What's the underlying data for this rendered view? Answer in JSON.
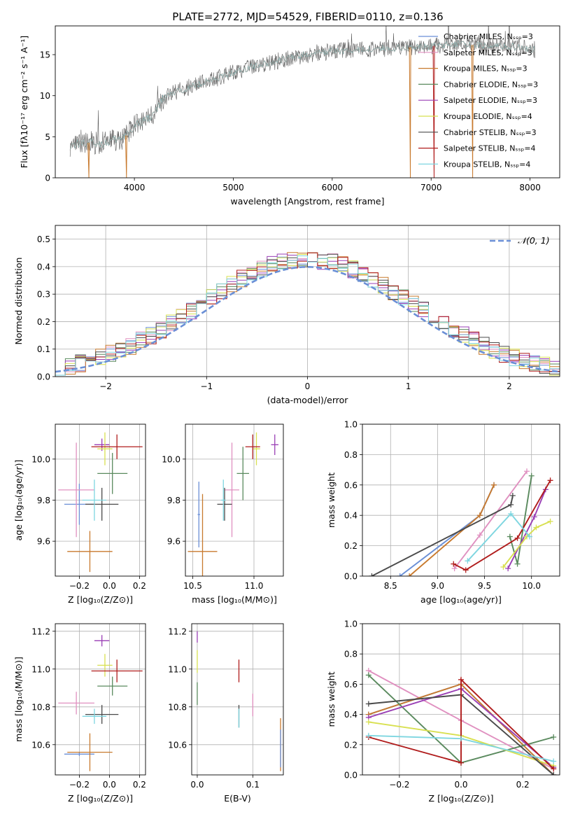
{
  "figure": {
    "title": "PLATE=2772, MJD=54529, FIBERID=0110, z=0.136"
  },
  "chart_data": [
    {
      "id": "spectrum",
      "type": "line",
      "xlabel": "wavelength [Angstrom, rest frame]",
      "ylabel": "Flux [fλ10⁻¹⁷ erg cm⁻² s⁻¹ A⁻¹]",
      "xlim": [
        3200,
        8300
      ],
      "ylim": [
        0,
        18.5
      ],
      "xticks": [
        4000,
        5000,
        6000,
        7000,
        8000
      ],
      "yticks": [
        0,
        5,
        10,
        15
      ],
      "grid": false,
      "legend_position": "top-right",
      "data_continuum": {
        "x": [
          3350,
          3500,
          3700,
          3900,
          4000,
          4100,
          4200,
          4300,
          4500,
          4700,
          5000,
          5200,
          5400,
          5600,
          5800,
          6000,
          6200,
          6400,
          6600,
          6800,
          7000,
          7200,
          7400,
          7600,
          7800,
          8050
        ],
        "y": [
          4.0,
          4.3,
          4.2,
          4.9,
          6.2,
          7.0,
          7.8,
          9.8,
          10.8,
          11.6,
          12.8,
          13.6,
          14.1,
          14.7,
          15.1,
          15.4,
          15.5,
          15.7,
          15.8,
          15.9,
          16.0,
          16.3,
          16.2,
          16.1,
          16.0,
          15.6
        ]
      },
      "series": [
        {
          "name": "Chabrier MILES, Nₛₛₚ=3",
          "color": "#6a8fd6"
        },
        {
          "name": "Salpeter MILES, Nₛₛₚ=3",
          "color": "#e090c0"
        },
        {
          "name": "Kroupa MILES, Nₛₛₚ=3",
          "color": "#c87a2e"
        },
        {
          "name": "Chabrier ELODIE, Nₛₛₚ=3",
          "color": "#5a8a5e"
        },
        {
          "name": "Salpeter ELODIE, Nₛₛₚ=3",
          "color": "#9a3fb5"
        },
        {
          "name": "Kroupa ELODIE, Nₛₛₚ=4",
          "color": "#d8e050"
        },
        {
          "name": "Chabrier STELIB, Nₛₛₚ=3",
          "color": "#4a4a4a"
        },
        {
          "name": "Salpeter STELIB, Nₛₛₚ=4",
          "color": "#b01c1c"
        },
        {
          "name": "Kroupa STELIB, Nₛₛₚ=4",
          "color": "#7ed6e0"
        }
      ]
    },
    {
      "id": "residuals",
      "type": "bar",
      "xlabel": "(data-model)/error",
      "ylabel": "Normed distribution",
      "xlim": [
        -2.5,
        2.5
      ],
      "ylim": [
        0,
        0.55
      ],
      "xticks": [
        -2,
        -1,
        0,
        1,
        2
      ],
      "yticks": [
        0.0,
        0.1,
        0.2,
        0.3,
        0.4,
        0.5
      ],
      "grid": true,
      "legend_position": "top-right",
      "reference_curve": {
        "name": "𝒩(0, 1)",
        "color": "#6a8fd6",
        "mu": 0,
        "sigma": 1
      }
    },
    {
      "id": "age-vs-Z",
      "type": "scatter",
      "xlabel": "Z [log₁₀(Z/Z⊙)]",
      "ylabel": "age  [log₁₀(age/yr)]",
      "xlim": [
        -0.36,
        0.24
      ],
      "ylim": [
        9.43,
        10.17
      ],
      "xticks": [
        -0.2,
        0.0,
        0.2
      ],
      "xticklabels": [
        "−0.2",
        "0.0",
        "0.2"
      ],
      "yticks": [
        9.6,
        9.8,
        10.0
      ],
      "grid": true,
      "points": [
        {
          "x": -0.2,
          "xerr": 0.1,
          "y": 9.78,
          "yerr": 0.1,
          "color": "#6a8fd6"
        },
        {
          "x": -0.22,
          "xerr": 0.12,
          "y": 9.85,
          "yerr": 0.23,
          "color": "#e090c0"
        },
        {
          "x": -0.13,
          "xerr": 0.15,
          "y": 9.55,
          "yerr": 0.1,
          "color": "#c87a2e"
        },
        {
          "x": 0.02,
          "xerr": 0.1,
          "y": 9.93,
          "yerr": 0.1,
          "color": "#5a8a5e"
        },
        {
          "x": -0.05,
          "xerr": 0.05,
          "y": 10.07,
          "yerr": 0.03,
          "color": "#9a3fb5"
        },
        {
          "x": -0.03,
          "xerr": 0.05,
          "y": 10.05,
          "yerr": 0.08,
          "color": "#d8e050"
        },
        {
          "x": -0.05,
          "xerr": 0.11,
          "y": 9.78,
          "yerr": 0.08,
          "color": "#4a4a4a"
        },
        {
          "x": 0.05,
          "xerr": 0.17,
          "y": 10.06,
          "yerr": 0.06,
          "color": "#b01c1c"
        },
        {
          "x": -0.1,
          "xerr": 0.08,
          "y": 9.8,
          "yerr": 0.1,
          "color": "#7ed6e0"
        }
      ]
    },
    {
      "id": "age-vs-mass",
      "type": "scatter",
      "xlabel": "mass [log₁₀(M/M⊙)]",
      "ylabel": "",
      "xlim": [
        10.44,
        11.24
      ],
      "ylim": [
        9.43,
        10.17
      ],
      "xticks": [
        10.5,
        11.0
      ],
      "yticks": [
        9.6,
        9.8,
        10.0
      ],
      "grid": true,
      "points": [
        {
          "x": 10.55,
          "xerr": 0.01,
          "y": 9.73,
          "yerr": 0.16,
          "color": "#6a8fd6"
        },
        {
          "x": 10.82,
          "xerr": 0.06,
          "y": 9.85,
          "yerr": 0.23,
          "color": "#e090c0"
        },
        {
          "x": 10.58,
          "xerr": 0.12,
          "y": 9.55,
          "yerr": 0.28,
          "color": "#c87a2e"
        },
        {
          "x": 10.91,
          "xerr": 0.05,
          "y": 9.93,
          "yerr": 0.13,
          "color": "#5a8a5e"
        },
        {
          "x": 11.17,
          "xerr": 0.03,
          "y": 10.07,
          "yerr": 0.05,
          "color": "#9a3fb5"
        },
        {
          "x": 11.02,
          "xerr": 0.03,
          "y": 10.05,
          "yerr": 0.08,
          "color": "#d8e050"
        },
        {
          "x": 10.76,
          "xerr": 0.06,
          "y": 9.78,
          "yerr": 0.08,
          "color": "#4a4a4a"
        },
        {
          "x": 10.99,
          "xerr": 0.06,
          "y": 10.06,
          "yerr": 0.06,
          "color": "#b01c1c"
        },
        {
          "x": 10.75,
          "xerr": 0.02,
          "y": 9.8,
          "yerr": 0.1,
          "color": "#7ed6e0"
        }
      ]
    },
    {
      "id": "weight-vs-age",
      "type": "line",
      "xlabel": "age  [log₁₀(age/yr)]",
      "ylabel": "mass weight",
      "xlim": [
        8.2,
        10.3
      ],
      "ylim": [
        0,
        1
      ],
      "xticks": [
        8.5,
        9.0,
        9.5,
        10.0
      ],
      "yticks": [
        0.0,
        0.2,
        0.4,
        0.6,
        0.8,
        1.0
      ],
      "grid": true,
      "series": [
        {
          "color": "#6a8fd6",
          "x": [
            8.6,
            9.45,
            9.6
          ],
          "y": [
            0.0,
            0.4,
            0.6
          ]
        },
        {
          "color": "#e090c0",
          "x": [
            9.18,
            9.45,
            9.95
          ],
          "y": [
            0.05,
            0.27,
            0.69
          ]
        },
        {
          "color": "#c87a2e",
          "x": [
            8.7,
            9.45,
            9.6
          ],
          "y": [
            0.0,
            0.4,
            0.6
          ]
        },
        {
          "color": "#5a8a5e",
          "x": [
            9.77,
            9.85,
            10.0
          ],
          "y": [
            0.26,
            0.08,
            0.66
          ]
        },
        {
          "color": "#9a3fb5",
          "x": [
            9.75,
            10.03,
            10.15
          ],
          "y": [
            0.05,
            0.39,
            0.57
          ]
        },
        {
          "color": "#d8e050",
          "x": [
            9.7,
            9.95,
            10.05,
            10.2
          ],
          "y": [
            0.06,
            0.26,
            0.32,
            0.36
          ]
        },
        {
          "color": "#4a4a4a",
          "x": [
            8.3,
            9.78,
            9.8
          ],
          "y": [
            0.0,
            0.47,
            0.53
          ]
        },
        {
          "color": "#b01c1c",
          "x": [
            9.17,
            9.3,
            9.85,
            10.2
          ],
          "y": [
            0.08,
            0.04,
            0.25,
            0.63
          ]
        },
        {
          "color": "#7ed6e0",
          "x": [
            9.32,
            9.78,
            9.98
          ],
          "y": [
            0.1,
            0.41,
            0.26
          ]
        }
      ]
    },
    {
      "id": "mass-vs-Z",
      "type": "scatter",
      "xlabel": "Z [log₁₀(Z/Z⊙)]",
      "ylabel": "mass [log₁₀(M/M⊙)]",
      "xlim": [
        -0.36,
        0.24
      ],
      "ylim": [
        10.44,
        11.24
      ],
      "xticks": [
        -0.2,
        0.0,
        0.2
      ],
      "xticklabels": [
        "−0.2",
        "0.0",
        "0.2"
      ],
      "yticks": [
        10.6,
        10.8,
        11.0,
        11.2
      ],
      "grid": true,
      "points": [
        {
          "x": -0.2,
          "xerr": 0.1,
          "y": 10.55,
          "yerr": 0.01,
          "color": "#6a8fd6"
        },
        {
          "x": -0.22,
          "xerr": 0.12,
          "y": 10.82,
          "yerr": 0.06,
          "color": "#e090c0"
        },
        {
          "x": -0.13,
          "xerr": 0.15,
          "y": 10.56,
          "yerr": 0.1,
          "color": "#c87a2e"
        },
        {
          "x": 0.02,
          "xerr": 0.1,
          "y": 10.91,
          "yerr": 0.05,
          "color": "#5a8a5e"
        },
        {
          "x": -0.05,
          "xerr": 0.05,
          "y": 11.15,
          "yerr": 0.03,
          "color": "#9a3fb5"
        },
        {
          "x": -0.03,
          "xerr": 0.05,
          "y": 11.02,
          "yerr": 0.06,
          "color": "#d8e050"
        },
        {
          "x": -0.05,
          "xerr": 0.11,
          "y": 10.76,
          "yerr": 0.05,
          "color": "#4a4a4a"
        },
        {
          "x": 0.05,
          "xerr": 0.17,
          "y": 10.99,
          "yerr": 0.06,
          "color": "#b01c1c"
        },
        {
          "x": -0.1,
          "xerr": 0.08,
          "y": 10.75,
          "yerr": 0.04,
          "color": "#7ed6e0"
        }
      ]
    },
    {
      "id": "mass-vs-EBV",
      "type": "scatter",
      "xlabel": "E(B-V)",
      "ylabel": "",
      "xlim": [
        -0.01,
        0.155
      ],
      "ylim": [
        10.44,
        11.24
      ],
      "xticks": [
        0.0,
        0.1
      ],
      "yticks": [
        10.6,
        10.8,
        11.0,
        11.2
      ],
      "grid": true,
      "points": [
        {
          "x": 0.0,
          "y": 11.17,
          "yerr": 0.03,
          "color": "#9a3fb5"
        },
        {
          "x": 0.0,
          "y": 11.04,
          "yerr": 0.06,
          "color": "#d8e050"
        },
        {
          "x": 0.0,
          "y": 10.87,
          "yerr": 0.06,
          "color": "#5a8a5e"
        },
        {
          "x": 0.075,
          "y": 10.99,
          "yerr": 0.06,
          "color": "#b01c1c"
        },
        {
          "x": 0.075,
          "y": 10.75,
          "yerr": 0.06,
          "color": "#4a4a4a"
        },
        {
          "x": 0.075,
          "y": 10.74,
          "yerr": 0.05,
          "color": "#7ed6e0"
        },
        {
          "x": 0.1,
          "y": 10.81,
          "yerr": 0.06,
          "color": "#e090c0"
        },
        {
          "x": 0.15,
          "y": 10.6,
          "yerr": 0.14,
          "color": "#c87a2e"
        },
        {
          "x": 0.15,
          "y": 10.58,
          "yerr": 0.1,
          "color": "#6a8fd6"
        }
      ]
    },
    {
      "id": "weight-vs-Z",
      "type": "line",
      "xlabel": "Z [log₁₀(Z/Z⊙)]",
      "ylabel": "mass weight",
      "xlim": [
        -0.32,
        0.32
      ],
      "ylim": [
        0,
        1
      ],
      "xticks": [
        -0.2,
        0.0,
        0.2
      ],
      "xticklabels": [
        "−0.2",
        "0.0",
        "0.2"
      ],
      "yticks": [
        0.0,
        0.2,
        0.4,
        0.6,
        0.8,
        1.0
      ],
      "grid": true,
      "series": [
        {
          "color": "#6a8fd6",
          "x": [
            -0.3,
            0.0,
            0.3
          ],
          "y": [
            0.4,
            0.6,
            0.0
          ]
        },
        {
          "color": "#e090c0",
          "x": [
            -0.3,
            0.0,
            0.3
          ],
          "y": [
            0.69,
            0.36,
            0.04
          ]
        },
        {
          "color": "#c87a2e",
          "x": [
            -0.3,
            0.0,
            0.3
          ],
          "y": [
            0.4,
            0.6,
            0.0
          ]
        },
        {
          "color": "#5a8a5e",
          "x": [
            -0.3,
            0.0,
            0.3
          ],
          "y": [
            0.66,
            0.08,
            0.25
          ]
        },
        {
          "color": "#9a3fb5",
          "x": [
            -0.3,
            0.0,
            0.3
          ],
          "y": [
            0.38,
            0.57,
            0.05
          ]
        },
        {
          "color": "#d8e050",
          "x": [
            -0.3,
            0.0,
            0.3
          ],
          "y": [
            0.35,
            0.26,
            0.06
          ]
        },
        {
          "color": "#4a4a4a",
          "x": [
            -0.3,
            0.0,
            0.3
          ],
          "y": [
            0.47,
            0.53,
            0.0
          ]
        },
        {
          "color": "#b01c1c",
          "x": [
            -0.3,
            0.0,
            0.0,
            0.3
          ],
          "y": [
            0.25,
            0.08,
            0.63,
            0.04
          ]
        },
        {
          "color": "#7ed6e0",
          "x": [
            -0.3,
            0.0,
            0.3
          ],
          "y": [
            0.26,
            0.24,
            0.09
          ]
        }
      ]
    }
  ]
}
